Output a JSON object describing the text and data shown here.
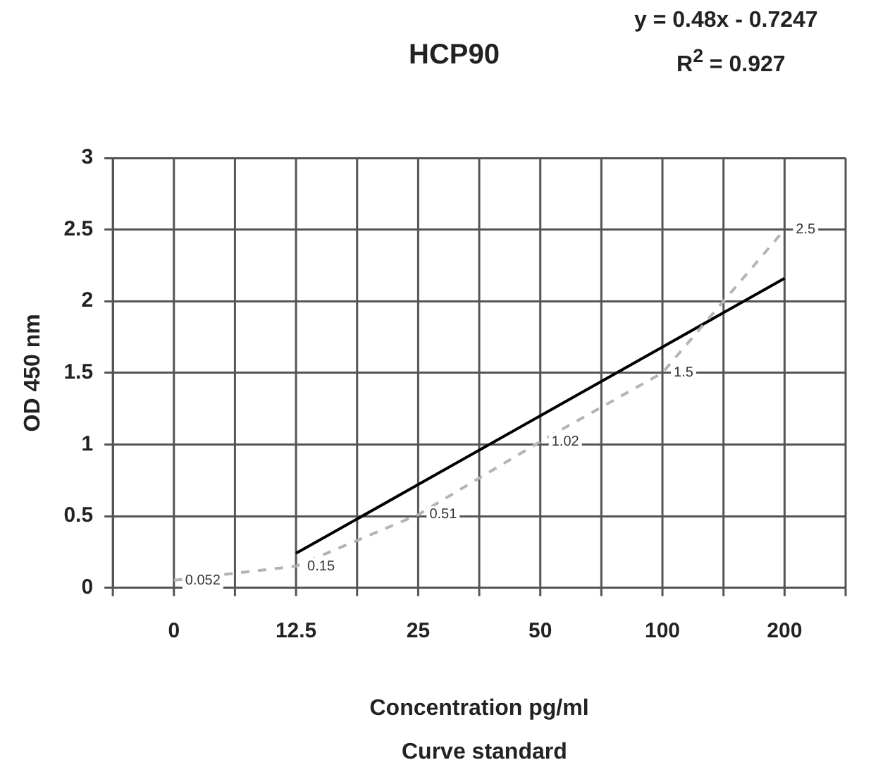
{
  "chart_data": {
    "type": "line",
    "title": "HCP90",
    "xlabel": "Concentration pg/ml",
    "ylabel": "OD 450 nm",
    "annotations": [
      "y = 0.48x - 0.7247",
      "R$^{2}$ = 0.927",
      "Curve standard"
    ],
    "categories": [
      "0",
      "12.5",
      "25",
      "50",
      "100",
      "200"
    ],
    "series": [
      {
        "color": "#b4b4b4",
        "line_style": "dashed",
        "values": [
          0.052,
          0.15,
          0.51,
          1.02,
          1.5,
          2.5
        ],
        "value_labels": [
          "0.052",
          "0.15",
          "0.51",
          "1.02",
          "1.5",
          "2.5"
        ]
      },
      {
        "color": "#000000",
        "line_style": "solid",
        "values": [
          null,
          0.24,
          0.72,
          1.2,
          1.68,
          2.16
        ]
      }
    ],
    "ylim": [
      0,
      3
    ],
    "yticks": [
      0,
      0.5,
      1,
      1.5,
      2,
      2.5,
      3
    ],
    "grid": true,
    "legend": false,
    "marker": "none"
  }
}
